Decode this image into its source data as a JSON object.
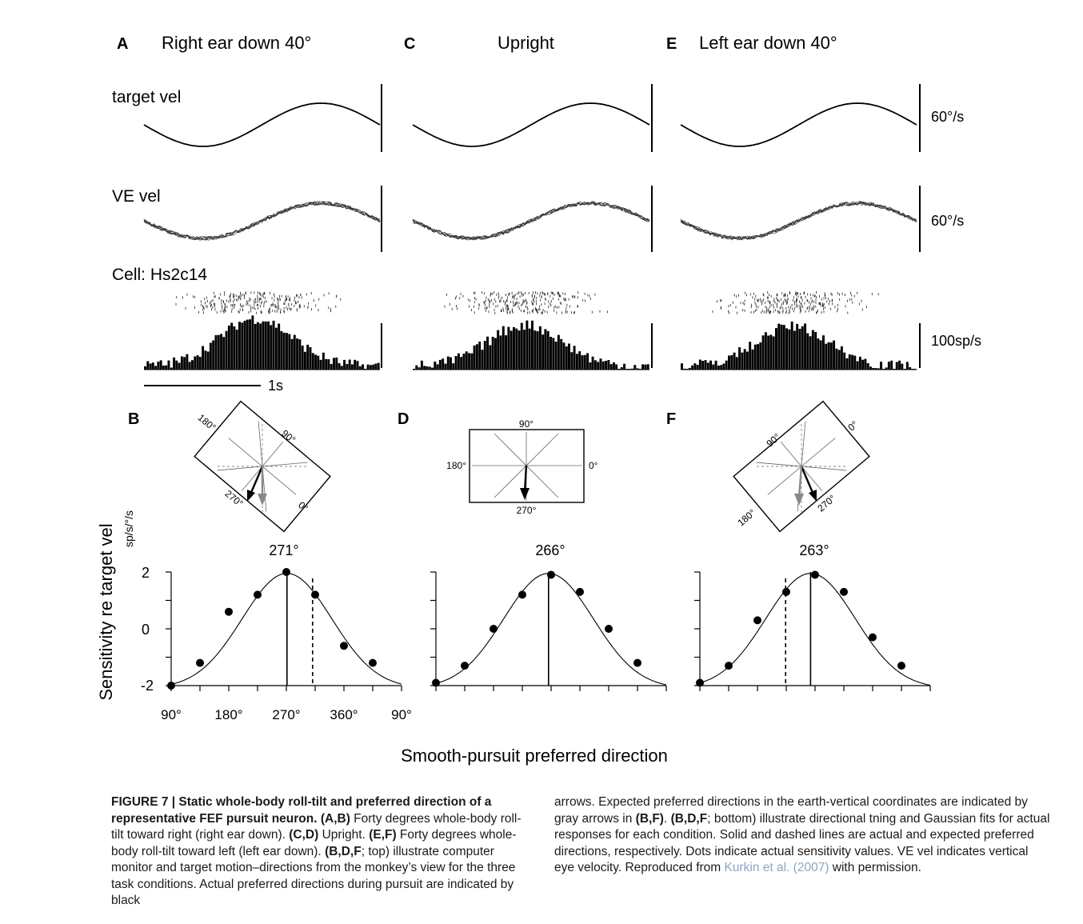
{
  "figure": {
    "panels": {
      "A": {
        "letter": "A",
        "title": "Right ear down 40°"
      },
      "C": {
        "letter": "C",
        "title": "Upright"
      },
      "E": {
        "letter": "E",
        "title": "Left ear down 40°"
      },
      "B": {
        "letter": "B",
        "pd": "271°"
      },
      "D": {
        "letter": "D",
        "pd": "266°"
      },
      "F": {
        "letter": "F",
        "pd": "263°"
      }
    },
    "row_labels": {
      "target": "target vel",
      "eye": "VE vel",
      "cell": "Cell: Hs2c14"
    },
    "scales": {
      "target": "60°/s",
      "eye": "60°/s",
      "rate": "100sp/s",
      "time": "1s"
    },
    "inset_labels": {
      "B": [
        "180°",
        "90°",
        "270°",
        "0°"
      ],
      "D": [
        "90°",
        "180°",
        "0°",
        "270°"
      ],
      "F": [
        "90°",
        "0°",
        "180°",
        "270°"
      ]
    },
    "ylabel": "Sensitivity re target vel",
    "yunit": "sp/s/°/s",
    "yticks": [
      "2",
      "0",
      "-2"
    ],
    "xticks": [
      "90°",
      "180°",
      "270°",
      "360°",
      "90°"
    ],
    "xlabel": "Smooth-pursuit preferred direction",
    "colors": {
      "actual_arrow": "#000000",
      "expected_arrow": "#888888"
    }
  },
  "chart_data": [
    {
      "type": "scatter",
      "panel": "B",
      "x_unit": "deg",
      "x": [
        90,
        135,
        180,
        225,
        270,
        315,
        360,
        405
      ],
      "y": [
        -2.0,
        -1.2,
        0.6,
        1.2,
        2.0,
        1.2,
        -0.6,
        -1.2
      ],
      "fit": "gaussian",
      "actual_pd": 271,
      "expected_pd": 311,
      "ylim": [
        -2,
        2
      ],
      "xlim": [
        90,
        450
      ]
    },
    {
      "type": "scatter",
      "panel": "D",
      "x_unit": "deg",
      "x": [
        90,
        135,
        180,
        225,
        270,
        315,
        360,
        405
      ],
      "y": [
        -1.9,
        -1.3,
        0.0,
        1.2,
        1.9,
        1.3,
        0.0,
        -1.2
      ],
      "fit": "gaussian",
      "actual_pd": 266,
      "ylim": [
        -2,
        2
      ],
      "xlim": [
        90,
        450
      ]
    },
    {
      "type": "scatter",
      "panel": "F",
      "x_unit": "deg",
      "x": [
        90,
        135,
        180,
        225,
        270,
        315,
        360,
        405
      ],
      "y": [
        -1.9,
        -1.3,
        0.3,
        1.3,
        1.9,
        1.3,
        -0.3,
        -1.3
      ],
      "fit": "gaussian",
      "actual_pd": 263,
      "expected_pd": 224,
      "ylim": [
        -2,
        2
      ],
      "xlim": [
        90,
        450
      ]
    }
  ],
  "caption": {
    "label": "FIGURE 7 | Static whole-body roll-tilt and preferred direction of a representative FEF pursuit neuron.",
    "p1b": "(A,B)",
    "p1": " Forty degrees whole-body roll-tilt toward right (right ear down). ",
    "p2b": "(C,D)",
    "p2": " Upright. ",
    "p3b": "(E,F)",
    "p3": " Forty degrees whole-body roll-tilt toward left (left ear down). ",
    "p4b": "(B,D,F",
    "p4": "; top) illustrate computer monitor and target motion–directions from the monkey’s view for the three task conditions. Actual preferred directions during pursuit are indicated by black",
    "r1": "arrows. Expected preferred directions in the earth-vertical coordinates are indicated by gray arrows in ",
    "r1b": "(B,F)",
    "r2": ". ",
    "r2b": "(B,D,F",
    "r3": "; bottom) illustrate directional tning and Gaussian fits for actual responses for each condition. Solid and dashed lines are actual and expected preferred directions, respectively. Dots indicate actual sensitivity values. VE vel indicates vertical eye velocity. Reproduced from ",
    "link": "Kurkin et al. (2007)",
    "r4": " with permission."
  }
}
